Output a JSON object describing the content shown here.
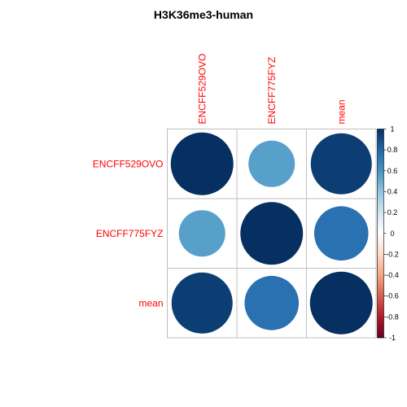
{
  "chart_data": {
    "type": "heatmap",
    "title": "H3K36me3-human",
    "row_labels": [
      "ENCFF529OVO",
      "ENCFF775FYZ",
      "mean"
    ],
    "col_labels": [
      "ENCFF529OVO",
      "ENCFF775FYZ",
      "mean"
    ],
    "values": [
      [
        1.0,
        0.55,
        0.95
      ],
      [
        0.55,
        1.0,
        0.75
      ],
      [
        0.95,
        0.75,
        1.0
      ]
    ],
    "colorbar": {
      "range": [
        -1,
        1
      ],
      "ticks": [
        "1",
        "0.8",
        "0.6",
        "0.4",
        "0.2",
        "0",
        "-0.2",
        "-0.4",
        "-0.6",
        "-0.8",
        "-1"
      ]
    },
    "colors": {
      "label_color": "#ff0000",
      "grid_color": "#bfbfbf",
      "palette": [
        "#67001f",
        "#b2182b",
        "#d6604d",
        "#f4a582",
        "#fddbc7",
        "#ffffff",
        "#d1e5f0",
        "#92c5de",
        "#4393c3",
        "#2166ac",
        "#053061"
      ]
    }
  }
}
